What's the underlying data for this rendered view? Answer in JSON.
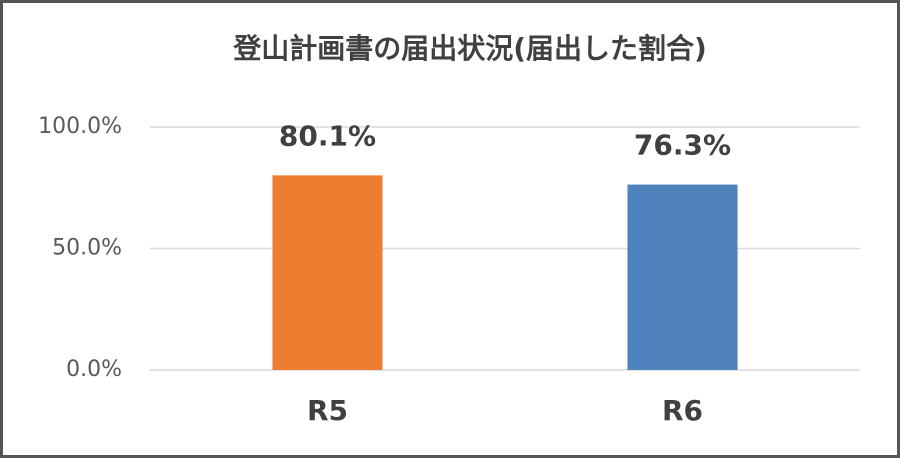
{
  "chart_data": {
    "type": "bar",
    "title": "登山計画書の届出状況(届出した割合)",
    "categories": [
      "R5",
      "R6"
    ],
    "values": [
      80.1,
      76.3
    ],
    "value_labels": [
      "80.1%",
      "76.3%"
    ],
    "colors": [
      "#ed7d31",
      "#4f81bd"
    ],
    "ylim": [
      0,
      100
    ],
    "yticks": [
      {
        "value": 0,
        "label": "0.0%"
      },
      {
        "value": 50,
        "label": "50.0%"
      },
      {
        "value": 100,
        "label": "100.0%"
      }
    ],
    "grid": true
  }
}
